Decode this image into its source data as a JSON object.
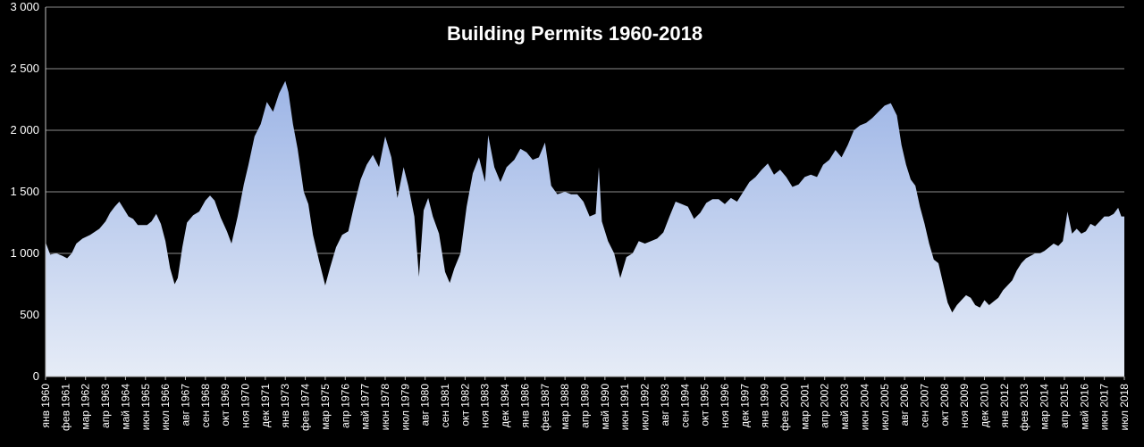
{
  "chart_data": {
    "type": "area",
    "title": "Building Permits 1960-2018",
    "xlabel": "",
    "ylabel": "",
    "ylim": [
      0,
      3000
    ],
    "yticks": [
      "0",
      "500",
      "1 000",
      "1 500",
      "2 000",
      "2 500",
      "3 000"
    ],
    "ytick_values": [
      0,
      500,
      1000,
      1500,
      2000,
      2500,
      3000
    ],
    "grid": true,
    "legend": "none",
    "x_range": [
      "1960-01",
      "2018-07"
    ],
    "xticks": [
      {
        "t": "1960-01",
        "label": "янв 1960"
      },
      {
        "t": "1961-02",
        "label": "фев 1961"
      },
      {
        "t": "1962-03",
        "label": "мар 1962"
      },
      {
        "t": "1963-04",
        "label": "апр 1963"
      },
      {
        "t": "1964-05",
        "label": "май 1964"
      },
      {
        "t": "1965-06",
        "label": "июн 1965"
      },
      {
        "t": "1966-07",
        "label": "июл 1966"
      },
      {
        "t": "1967-08",
        "label": "авг 1967"
      },
      {
        "t": "1968-09",
        "label": "сен 1968"
      },
      {
        "t": "1969-10",
        "label": "окт 1969"
      },
      {
        "t": "1970-11",
        "label": "ноя 1970"
      },
      {
        "t": "1971-12",
        "label": "дек 1971"
      },
      {
        "t": "1973-01",
        "label": "янв 1973"
      },
      {
        "t": "1974-02",
        "label": "фев 1974"
      },
      {
        "t": "1975-03",
        "label": "мар 1975"
      },
      {
        "t": "1976-04",
        "label": "апр 1976"
      },
      {
        "t": "1977-05",
        "label": "май 1977"
      },
      {
        "t": "1978-06",
        "label": "июн 1978"
      },
      {
        "t": "1979-07",
        "label": "июл 1979"
      },
      {
        "t": "1980-08",
        "label": "авг 1980"
      },
      {
        "t": "1981-09",
        "label": "сен 1981"
      },
      {
        "t": "1982-10",
        "label": "окт 1982"
      },
      {
        "t": "1983-11",
        "label": "ноя 1983"
      },
      {
        "t": "1984-12",
        "label": "дек 1984"
      },
      {
        "t": "1986-01",
        "label": "янв 1986"
      },
      {
        "t": "1987-02",
        "label": "фев 1987"
      },
      {
        "t": "1988-03",
        "label": "мар 1988"
      },
      {
        "t": "1989-04",
        "label": "апр 1989"
      },
      {
        "t": "1990-05",
        "label": "май 1990"
      },
      {
        "t": "1991-06",
        "label": "июн 1991"
      },
      {
        "t": "1992-07",
        "label": "июл 1992"
      },
      {
        "t": "1993-08",
        "label": "авг 1993"
      },
      {
        "t": "1994-09",
        "label": "сен 1994"
      },
      {
        "t": "1995-10",
        "label": "окт 1995"
      },
      {
        "t": "1996-11",
        "label": "ноя 1996"
      },
      {
        "t": "1997-12",
        "label": "дек 1997"
      },
      {
        "t": "1999-01",
        "label": "янв 1999"
      },
      {
        "t": "2000-02",
        "label": "фев 2000"
      },
      {
        "t": "2001-03",
        "label": "мар 2001"
      },
      {
        "t": "2002-04",
        "label": "апр 2002"
      },
      {
        "t": "2003-05",
        "label": "май 2003"
      },
      {
        "t": "2004-06",
        "label": "июн 2004"
      },
      {
        "t": "2005-07",
        "label": "июл 2005"
      },
      {
        "t": "2006-08",
        "label": "авг 2006"
      },
      {
        "t": "2007-09",
        "label": "сен 2007"
      },
      {
        "t": "2008-10",
        "label": "окт 2008"
      },
      {
        "t": "2009-11",
        "label": "ноя 2009"
      },
      {
        "t": "2010-12",
        "label": "дек 2010"
      },
      {
        "t": "2012-01",
        "label": "янв 2012"
      },
      {
        "t": "2013-02",
        "label": "фев 2013"
      },
      {
        "t": "2014-03",
        "label": "мар 2014"
      },
      {
        "t": "2015-04",
        "label": "апр 2015"
      },
      {
        "t": "2016-05",
        "label": "май 2016"
      },
      {
        "t": "2017-06",
        "label": "июн 2017"
      },
      {
        "t": "2018-07",
        "label": "июл 2018"
      }
    ],
    "series": [
      {
        "fill_top": "#9db5e6",
        "fill_bottom": "#e6ecf7",
        "points": [
          [
            "1960-01",
            1090
          ],
          [
            "1960-04",
            990
          ],
          [
            "1960-08",
            1000
          ],
          [
            "1960-12",
            980
          ],
          [
            "1961-03",
            960
          ],
          [
            "1961-06",
            1000
          ],
          [
            "1961-09",
            1080
          ],
          [
            "1962-01",
            1120
          ],
          [
            "1962-06",
            1150
          ],
          [
            "1962-12",
            1200
          ],
          [
            "1963-04",
            1260
          ],
          [
            "1963-07",
            1330
          ],
          [
            "1963-10",
            1380
          ],
          [
            "1964-01",
            1420
          ],
          [
            "1964-04",
            1360
          ],
          [
            "1964-07",
            1300
          ],
          [
            "1964-10",
            1280
          ],
          [
            "1965-01",
            1230
          ],
          [
            "1965-04",
            1230
          ],
          [
            "1965-07",
            1230
          ],
          [
            "1965-10",
            1260
          ],
          [
            "1966-01",
            1320
          ],
          [
            "1966-04",
            1240
          ],
          [
            "1966-07",
            1100
          ],
          [
            "1966-10",
            880
          ],
          [
            "1967-01",
            750
          ],
          [
            "1967-03",
            800
          ],
          [
            "1967-06",
            1050
          ],
          [
            "1967-09",
            1250
          ],
          [
            "1968-01",
            1310
          ],
          [
            "1968-05",
            1340
          ],
          [
            "1968-09",
            1430
          ],
          [
            "1968-12",
            1470
          ],
          [
            "1969-03",
            1430
          ],
          [
            "1969-07",
            1290
          ],
          [
            "1969-11",
            1180
          ],
          [
            "1970-02",
            1080
          ],
          [
            "1970-06",
            1300
          ],
          [
            "1970-10",
            1560
          ],
          [
            "1971-01",
            1720
          ],
          [
            "1971-05",
            1950
          ],
          [
            "1971-09",
            2050
          ],
          [
            "1972-01",
            2230
          ],
          [
            "1972-05",
            2150
          ],
          [
            "1972-09",
            2300
          ],
          [
            "1973-01",
            2400
          ],
          [
            "1973-03",
            2310
          ],
          [
            "1973-06",
            2050
          ],
          [
            "1973-09",
            1850
          ],
          [
            "1974-01",
            1500
          ],
          [
            "1974-04",
            1400
          ],
          [
            "1974-07",
            1150
          ],
          [
            "1974-11",
            940
          ],
          [
            "1975-03",
            740
          ],
          [
            "1975-06",
            880
          ],
          [
            "1975-10",
            1050
          ],
          [
            "1976-02",
            1150
          ],
          [
            "1976-06",
            1180
          ],
          [
            "1976-10",
            1400
          ],
          [
            "1977-02",
            1600
          ],
          [
            "1977-06",
            1720
          ],
          [
            "1977-10",
            1800
          ],
          [
            "1978-02",
            1700
          ],
          [
            "1978-06",
            1950
          ],
          [
            "1978-10",
            1780
          ],
          [
            "1979-02",
            1450
          ],
          [
            "1979-06",
            1700
          ],
          [
            "1979-09",
            1550
          ],
          [
            "1980-01",
            1300
          ],
          [
            "1980-04",
            810
          ],
          [
            "1980-07",
            1350
          ],
          [
            "1980-10",
            1450
          ],
          [
            "1981-01",
            1300
          ],
          [
            "1981-05",
            1160
          ],
          [
            "1981-09",
            850
          ],
          [
            "1981-12",
            760
          ],
          [
            "1982-03",
            880
          ],
          [
            "1982-07",
            1000
          ],
          [
            "1982-11",
            1380
          ],
          [
            "1983-03",
            1650
          ],
          [
            "1983-07",
            1780
          ],
          [
            "1983-11",
            1580
          ],
          [
            "1984-01",
            1960
          ],
          [
            "1984-05",
            1700
          ],
          [
            "1984-09",
            1580
          ],
          [
            "1985-01",
            1700
          ],
          [
            "1985-06",
            1760
          ],
          [
            "1985-10",
            1850
          ],
          [
            "1986-02",
            1820
          ],
          [
            "1986-06",
            1760
          ],
          [
            "1986-10",
            1780
          ],
          [
            "1987-02",
            1900
          ],
          [
            "1987-06",
            1550
          ],
          [
            "1987-10",
            1480
          ],
          [
            "1988-03",
            1500
          ],
          [
            "1988-07",
            1480
          ],
          [
            "1988-11",
            1480
          ],
          [
            "1989-03",
            1420
          ],
          [
            "1989-07",
            1300
          ],
          [
            "1989-11",
            1320
          ],
          [
            "1990-01",
            1700
          ],
          [
            "1990-03",
            1260
          ],
          [
            "1990-07",
            1100
          ],
          [
            "1990-11",
            1000
          ],
          [
            "1991-03",
            800
          ],
          [
            "1991-07",
            970
          ],
          [
            "1991-11",
            1000
          ],
          [
            "1992-03",
            1100
          ],
          [
            "1992-07",
            1080
          ],
          [
            "1992-11",
            1100
          ],
          [
            "1993-03",
            1120
          ],
          [
            "1993-07",
            1170
          ],
          [
            "1993-11",
            1300
          ],
          [
            "1994-03",
            1420
          ],
          [
            "1994-07",
            1400
          ],
          [
            "1994-11",
            1380
          ],
          [
            "1995-03",
            1280
          ],
          [
            "1995-07",
            1330
          ],
          [
            "1995-11",
            1410
          ],
          [
            "1996-03",
            1440
          ],
          [
            "1996-07",
            1440
          ],
          [
            "1996-11",
            1400
          ],
          [
            "1997-03",
            1450
          ],
          [
            "1997-07",
            1420
          ],
          [
            "1997-11",
            1500
          ],
          [
            "1998-03",
            1580
          ],
          [
            "1998-07",
            1620
          ],
          [
            "1998-11",
            1680
          ],
          [
            "1999-03",
            1730
          ],
          [
            "1999-07",
            1640
          ],
          [
            "1999-11",
            1680
          ],
          [
            "2000-03",
            1620
          ],
          [
            "2000-07",
            1540
          ],
          [
            "2000-11",
            1560
          ],
          [
            "2001-03",
            1620
          ],
          [
            "2001-07",
            1640
          ],
          [
            "2001-11",
            1620
          ],
          [
            "2002-03",
            1720
          ],
          [
            "2002-07",
            1760
          ],
          [
            "2002-11",
            1840
          ],
          [
            "2003-03",
            1780
          ],
          [
            "2003-07",
            1880
          ],
          [
            "2003-11",
            2000
          ],
          [
            "2004-03",
            2040
          ],
          [
            "2004-07",
            2060
          ],
          [
            "2004-11",
            2100
          ],
          [
            "2005-03",
            2150
          ],
          [
            "2005-07",
            2200
          ],
          [
            "2005-11",
            2220
          ],
          [
            "2006-03",
            2120
          ],
          [
            "2006-06",
            1880
          ],
          [
            "2006-09",
            1720
          ],
          [
            "2006-12",
            1600
          ],
          [
            "2007-03",
            1550
          ],
          [
            "2007-06",
            1380
          ],
          [
            "2007-09",
            1240
          ],
          [
            "2007-12",
            1080
          ],
          [
            "2008-03",
            950
          ],
          [
            "2008-06",
            920
          ],
          [
            "2008-09",
            760
          ],
          [
            "2008-12",
            600
          ],
          [
            "2009-03",
            520
          ],
          [
            "2009-06",
            580
          ],
          [
            "2009-09",
            620
          ],
          [
            "2009-12",
            660
          ],
          [
            "2010-03",
            640
          ],
          [
            "2010-06",
            580
          ],
          [
            "2010-09",
            560
          ],
          [
            "2010-12",
            620
          ],
          [
            "2011-03",
            580
          ],
          [
            "2011-06",
            610
          ],
          [
            "2011-09",
            640
          ],
          [
            "2011-12",
            700
          ],
          [
            "2012-03",
            740
          ],
          [
            "2012-06",
            780
          ],
          [
            "2012-09",
            860
          ],
          [
            "2012-12",
            920
          ],
          [
            "2013-03",
            960
          ],
          [
            "2013-06",
            980
          ],
          [
            "2013-09",
            1000
          ],
          [
            "2013-12",
            1000
          ],
          [
            "2014-03",
            1020
          ],
          [
            "2014-06",
            1050
          ],
          [
            "2014-09",
            1080
          ],
          [
            "2014-12",
            1060
          ],
          [
            "2015-03",
            1100
          ],
          [
            "2015-06",
            1340
          ],
          [
            "2015-09",
            1160
          ],
          [
            "2015-12",
            1200
          ],
          [
            "2016-03",
            1160
          ],
          [
            "2016-06",
            1180
          ],
          [
            "2016-09",
            1240
          ],
          [
            "2016-12",
            1220
          ],
          [
            "2017-03",
            1260
          ],
          [
            "2017-06",
            1300
          ],
          [
            "2017-09",
            1300
          ],
          [
            "2017-12",
            1320
          ],
          [
            "2018-03",
            1370
          ],
          [
            "2018-05",
            1300
          ],
          [
            "2018-07",
            1300
          ]
        ]
      }
    ]
  }
}
